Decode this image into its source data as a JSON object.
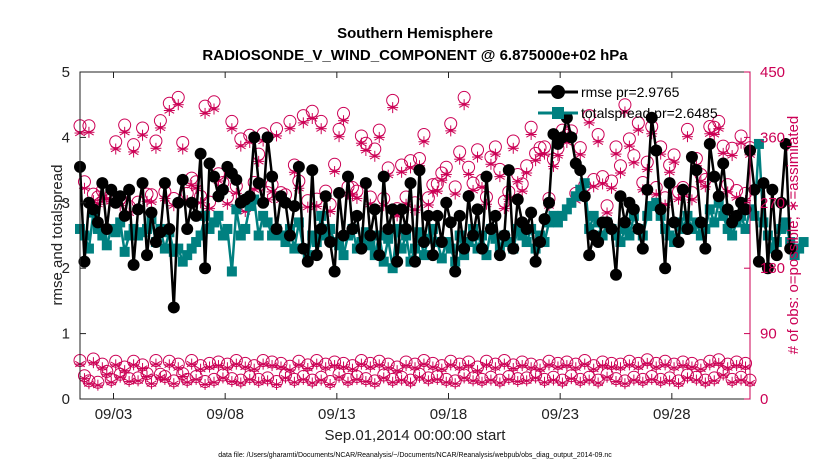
{
  "chart_data": {
    "type": "line",
    "title": "Southern Hemisphere",
    "subtitle": "RADIOSONDE_V_WIND_COMPONENT @ 6.875000e+02 hPa",
    "xlabel": "Sep.01,2014 00:00:00 start",
    "ylabel_left": "rmse and totalspread",
    "ylabel_right": "# of obs: o=possible; ∗=assimilated",
    "footer": "data file: /Users/gharamti/Documents/NCAR/Reanalysis/~/Documents/NCAR/Reanalysis/webpub/obs_diag_output_2014-09.nc",
    "xlim": [
      1.5,
      31.5
    ],
    "ylim_left": [
      0,
      5
    ],
    "ylim_right": [
      0,
      450
    ],
    "x_ticks": [
      3,
      8,
      13,
      18,
      23,
      28
    ],
    "x_tick_labels": [
      "09/03",
      "09/08",
      "09/13",
      "09/18",
      "09/23",
      "09/28"
    ],
    "y_ticks_left": [
      "0",
      "1",
      "2",
      "3",
      "4",
      "5"
    ],
    "y_ticks_right": [
      "0",
      "90",
      "180",
      "270",
      "360",
      "450"
    ],
    "colors": {
      "rmse": "#000000",
      "spread": "#008080",
      "obs": "#cc0055"
    },
    "series": [
      {
        "name": "rmse pr=2.9765",
        "style": "black line with filled circles",
        "values": [
          3.55,
          2.1,
          3.0,
          2.9,
          2.7,
          3.3,
          2.6,
          3.2,
          3.0,
          3.1,
          2.8,
          3.2,
          2.05,
          2.9,
          3.3,
          2.2,
          2.85,
          2.4,
          2.55,
          3.3,
          2.6,
          1.4,
          3.0,
          3.35,
          2.6,
          3.0,
          2.8,
          3.75,
          2.0,
          3.6,
          3.4,
          3.1,
          3.2,
          3.55,
          3.45,
          3.35,
          3.0,
          3.05,
          3.1,
          4.0,
          3.3,
          3.0,
          4.0,
          3.4,
          2.6,
          3.1,
          3.0,
          2.5,
          2.95,
          3.55,
          2.3,
          2.1,
          3.5,
          2.2,
          2.6,
          3.1,
          2.4,
          1.95,
          3.15,
          2.5,
          3.4,
          2.6,
          2.8,
          2.3,
          3.3,
          2.5,
          2.9,
          2.2,
          3.4,
          2.6,
          2.9,
          2.1,
          2.9,
          2.6,
          3.3,
          2.1,
          3.5,
          2.4,
          2.8,
          2.2,
          2.8,
          2.4,
          3.0,
          2.7,
          1.95,
          2.8,
          2.3,
          3.1,
          2.5,
          2.9,
          2.3,
          3.4,
          2.6,
          2.8,
          2.2,
          2.5,
          3.5,
          2.3,
          3.05,
          2.7,
          2.6,
          2.85,
          2.1,
          2.4,
          2.75,
          3.0,
          4.05,
          3.9,
          4.0,
          4.3,
          4.0,
          3.6,
          3.5,
          3.1,
          2.2,
          2.5,
          2.4,
          2.7,
          2.7,
          2.6,
          1.9,
          3.1,
          2.7,
          3.0,
          2.9,
          2.6,
          2.3,
          3.2,
          4.3,
          3.8,
          2.9,
          2.0,
          3.3,
          2.7,
          2.4,
          3.2,
          2.6,
          3.7,
          3.5,
          2.7,
          2.3,
          3.9,
          3.4,
          3.1,
          3.6,
          2.9,
          2.7,
          2.8,
          3.0,
          2.9,
          3.8,
          3.2,
          2.1,
          3.3,
          2.0,
          3.2,
          2.2,
          3.0,
          3.9,
          2.3
        ],
        "x_start": 1.5,
        "x_step": 0.2
      },
      {
        "name": "totalspread pr=2.6485",
        "style": "teal line with filled squares",
        "values": [
          2.6,
          2.5,
          2.3,
          2.85,
          2.6,
          2.5,
          2.35,
          2.6,
          2.55,
          2.7,
          2.25,
          2.5,
          2.6,
          2.5,
          2.55,
          2.6,
          2.75,
          2.4,
          2.6,
          2.3,
          2.55,
          2.25,
          2.3,
          2.1,
          2.2,
          2.3,
          2.4,
          2.5,
          2.8,
          2.6,
          2.7,
          2.8,
          2.5,
          2.6,
          1.95,
          2.9,
          2.5,
          2.6,
          2.95,
          3.05,
          2.5,
          2.8,
          2.7,
          2.5,
          2.6,
          2.5,
          2.4,
          2.6,
          2.3,
          2.7,
          2.3,
          2.2,
          2.5,
          2.4,
          2.8,
          2.5,
          2.6,
          2.4,
          2.35,
          2.2,
          2.5,
          2.6,
          2.3,
          2.4,
          2.55,
          2.35,
          2.2,
          2.5,
          2.1,
          2.45,
          2.0,
          2.6,
          2.3,
          2.5,
          2.1,
          2.3,
          2.55,
          2.2,
          2.45,
          2.6,
          2.4,
          2.15,
          2.4,
          2.3,
          2.1,
          2.5,
          2.2,
          2.4,
          2.6,
          2.3,
          2.5,
          2.2,
          2.6,
          2.45,
          2.3,
          2.5,
          2.4,
          2.3,
          2.6,
          2.5,
          2.4,
          2.6,
          2.3,
          2.5,
          2.4,
          2.7,
          2.8,
          2.7,
          2.8,
          2.9,
          3.0,
          3.1,
          3.2,
          3.3,
          2.6,
          2.8,
          2.7,
          2.5,
          2.7,
          2.6,
          2.5,
          2.4,
          2.6,
          2.5,
          2.8,
          2.6,
          2.5,
          2.8,
          2.95,
          3.0,
          2.8,
          2.6,
          2.5,
          2.4,
          2.7,
          2.6,
          2.8,
          2.6,
          2.7,
          2.5,
          2.6,
          2.9,
          2.7,
          3.0,
          2.8,
          2.6,
          2.5,
          2.7,
          2.8,
          2.6,
          2.9,
          2.8,
          3.9,
          2.7,
          2.5,
          2.3,
          2.4,
          2.6,
          2.7,
          2.4,
          2.2,
          2.3,
          2.4
        ],
        "x_start": 1.5,
        "x_step": 0.2
      },
      {
        "name": "# of obs possible (o), upper group",
        "axis": "right",
        "values": [
          376,
          299,
          376,
          282,
          278,
          287,
          285,
          282,
          354,
          276,
          377,
          265,
          350,
          271,
          373,
          282,
          281,
          355,
          383,
          285,
          407,
          276,
          415,
          353,
          283,
          304,
          299,
          279,
          403,
          271,
          409,
          310,
          298,
          278,
          382,
          293,
          358,
          267,
          363,
          298,
          337,
          365,
          284,
          295,
          372,
          284,
          281,
          382,
          322,
          300,
          390,
          273,
          396,
          275,
          382,
          286,
          268,
          323,
          371,
          393,
          292,
          291,
          286,
          362,
          352,
          278,
          344,
          370,
          276,
          318,
          411,
          262,
          322,
          278,
          328,
          270,
          331,
          364,
          277,
          295,
          296,
          311,
          319,
          379,
          292,
          340,
          415,
          319,
          297,
          343,
          301,
          278,
          333,
          347,
          316,
          272,
          285,
          355,
          309,
          296,
          321,
          374,
          338,
          346,
          347,
          276,
          330,
          345,
          370,
          363,
          369,
          283,
          346,
          294,
          390,
          302,
          364,
          306,
          266,
          300,
          347,
          321,
          405,
          358,
          335,
          380,
          298,
          326,
          375,
          291,
          347,
          277,
          322,
          336,
          285,
          291,
          371,
          284,
          331,
          309,
          302,
          375,
          374,
          382,
          348,
          295,
          345,
          287,
          362,
          283,
          346,
          320,
          415,
          323,
          313,
          301,
          363,
          296,
          284,
          307
        ],
        "x_start": 1.5,
        "x_step": 0.2
      },
      {
        "name": "# of obs assimilated (*), upper group",
        "axis": "right",
        "values": [
          366,
          290,
          367,
          273,
          268,
          277,
          275,
          272,
          344,
          266,
          367,
          256,
          340,
          262,
          363,
          272,
          271,
          345,
          373,
          276,
          397,
          266,
          405,
          344,
          273,
          294,
          290,
          270,
          393,
          262,
          399,
          300,
          288,
          268,
          372,
          283,
          348,
          258,
          353,
          288,
          327,
          355,
          274,
          285,
          362,
          274,
          271,
          372,
          312,
          290,
          380,
          264,
          386,
          265,
          372,
          276,
          258,
          313,
          361,
          383,
          282,
          281,
          276,
          352,
          342,
          268,
          334,
          360,
          266,
          308,
          401,
          252,
          312,
          268,
          318,
          260,
          321,
          354,
          267,
          285,
          286,
          301,
          309,
          369,
          282,
          330,
          405,
          309,
          287,
          333,
          291,
          268,
          323,
          337,
          306,
          262,
          275,
          345,
          299,
          286,
          311,
          364,
          328,
          336,
          337,
          266,
          320,
          335,
          360,
          353,
          359,
          273,
          336,
          284,
          380,
          292,
          354,
          296,
          256,
          290,
          337,
          311,
          395,
          348,
          325,
          370,
          288,
          316,
          365,
          281,
          337,
          267,
          312,
          326,
          275,
          281,
          361,
          274,
          321,
          299,
          292,
          365,
          364,
          372,
          338,
          285,
          335,
          277,
          352,
          273,
          336,
          310,
          405,
          313,
          303,
          291,
          353,
          286,
          274,
          297
        ],
        "x_start": 1.5,
        "x_step": 0.2
      },
      {
        "name": "# of obs possible (o), lower group",
        "axis": "right",
        "values": [
          53,
          32,
          25,
          55,
          23,
          48,
          38,
          27,
          52,
          34,
          44,
          28,
          52,
          29,
          47,
          35,
          25,
          53,
          34,
          31,
          52,
          25,
          48,
          35,
          27,
          53,
          31,
          46,
          24,
          49,
          27,
          51,
          33,
          48,
          28,
          53,
          26,
          49,
          31,
          46,
          27,
          53,
          29,
          51,
          24,
          49,
          33,
          45,
          27,
          52,
          31,
          47,
          26,
          53,
          30,
          48,
          24,
          51,
          34,
          49,
          27,
          46,
          31,
          53,
          28,
          49,
          25,
          52,
          33,
          48,
          27,
          44,
          30,
          51,
          26,
          48,
          34,
          53,
          29,
          49,
          31,
          46,
          27,
          52,
          25,
          48,
          33,
          51,
          29,
          44,
          27,
          52,
          30,
          48,
          26,
          53,
          31,
          47,
          28,
          51,
          29,
          48,
          33,
          46,
          27,
          52,
          30,
          49,
          26,
          51,
          32,
          48,
          27,
          53,
          30,
          46,
          26,
          51,
          34,
          49,
          28,
          48,
          25,
          52,
          30,
          49,
          27,
          54,
          31,
          49,
          27,
          52,
          29,
          48,
          25,
          51,
          33,
          49,
          30,
          46,
          26,
          52,
          29,
          54,
          37,
          48,
          27,
          51,
          30,
          49,
          26,
          48,
          32,
          52,
          28,
          49,
          25,
          46,
          27,
          2
        ],
        "x_start": 1.5,
        "x_step": 0.2
      },
      {
        "name": "# of obs assimilated (*), lower group",
        "axis": "right",
        "values": [
          48,
          28,
          21,
          50,
          19,
          43,
          34,
          23,
          47,
          30,
          39,
          24,
          47,
          25,
          42,
          31,
          21,
          48,
          30,
          27,
          47,
          21,
          43,
          31,
          23,
          48,
          27,
          41,
          20,
          44,
          23,
          46,
          29,
          43,
          24,
          48,
          22,
          44,
          27,
          41,
          23,
          48,
          25,
          46,
          20,
          44,
          29,
          40,
          23,
          47,
          27,
          42,
          22,
          48,
          26,
          43,
          20,
          46,
          30,
          44,
          23,
          41,
          27,
          48,
          24,
          44,
          21,
          47,
          29,
          43,
          23,
          39,
          26,
          46,
          22,
          43,
          30,
          48,
          25,
          44,
          27,
          41,
          23,
          47,
          21,
          43,
          29,
          46,
          25,
          39,
          23,
          47,
          26,
          43,
          22,
          48,
          27,
          42,
          24,
          46,
          25,
          43,
          29,
          41,
          23,
          47,
          26,
          44,
          22,
          46,
          28,
          43,
          23,
          48,
          26,
          41,
          22,
          46,
          30,
          44,
          24,
          43,
          21,
          47,
          26,
          44,
          23,
          49,
          27,
          44,
          23,
          47,
          25,
          43,
          21,
          46,
          29,
          44,
          26,
          41,
          22,
          47,
          25,
          49,
          33,
          43,
          23,
          46,
          26,
          44,
          22,
          43,
          28,
          47,
          24,
          44,
          21,
          41,
          23,
          0
        ],
        "x_start": 1.5,
        "x_step": 0.2
      }
    ],
    "legend": {
      "placement": "top-right",
      "entries": [
        "rmse pr=2.9765",
        "totalspread pr=2.6485"
      ]
    }
  }
}
